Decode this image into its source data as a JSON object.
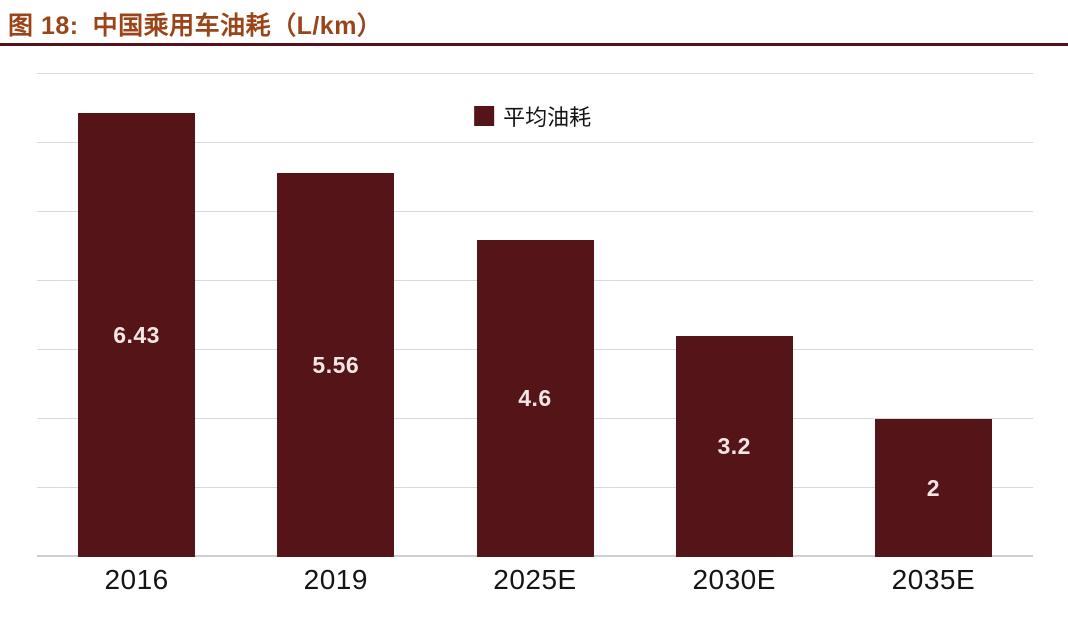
{
  "figure": {
    "label": "图 18:",
    "title": "中国乘用车油耗（L/km）"
  },
  "colors": {
    "title": "#9A4519",
    "divider": "#55141C",
    "bar": "#551418",
    "gridline": "#D9D9D9",
    "bar_label": "#F2E6E4",
    "axis_label": "#141414"
  },
  "chart_data": {
    "type": "bar",
    "title": "中国乘用车油耗（L/km）",
    "categories": [
      "2016",
      "2019",
      "2025E",
      "2030E",
      "2035E"
    ],
    "values": [
      6.43,
      5.56,
      4.6,
      3.2,
      2
    ],
    "value_labels": [
      "6.43",
      "5.56",
      "4.6",
      "3.2",
      "2"
    ],
    "legend": [
      "平均油耗"
    ],
    "xlabel": "",
    "ylabel": "",
    "ylim": [
      0,
      7
    ],
    "gridline_step": 1,
    "grid": true,
    "y_tick_labels_visible": false,
    "legend_position": "top-center",
    "value_label_position": "center-of-bar"
  }
}
